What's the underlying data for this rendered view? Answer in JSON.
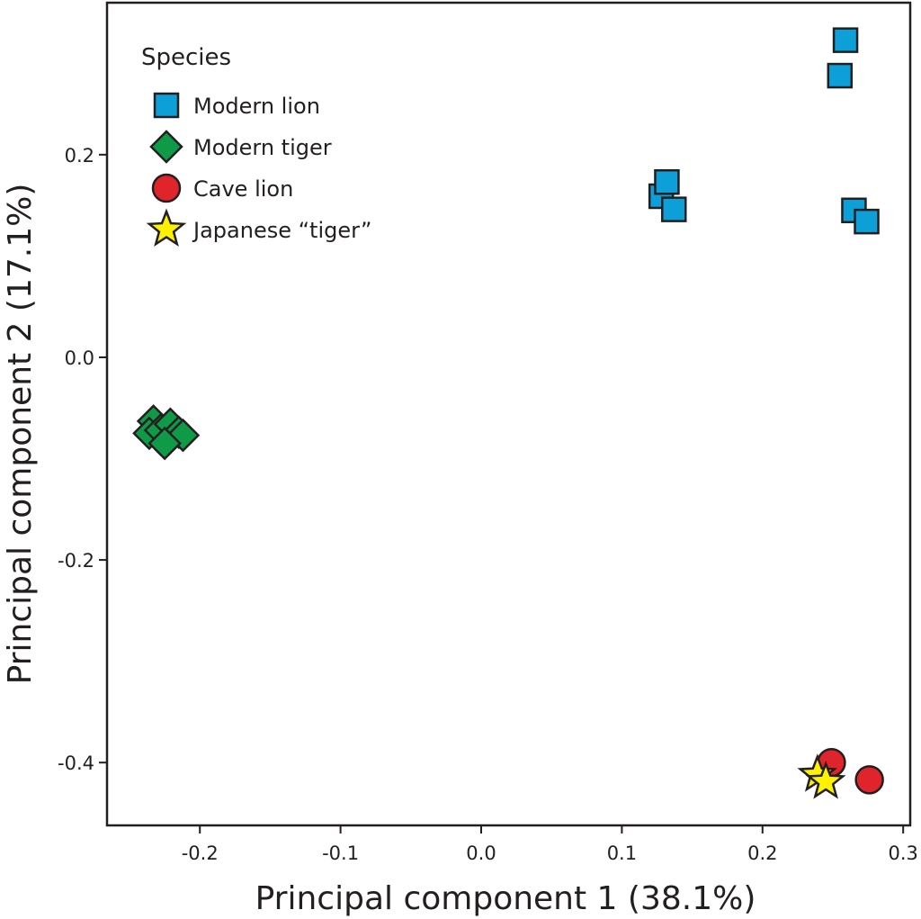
{
  "chart_data": {
    "type": "scatter",
    "title": "",
    "xlabel": "Principal component 1 (38.1%)",
    "ylabel": "Principal component 2 (17.1%)",
    "xlim": [
      -0.266,
      0.305
    ],
    "ylim": [
      -0.462,
      0.35
    ],
    "xticks": [
      -0.2,
      -0.1,
      0.0,
      0.1,
      0.2,
      0.3
    ],
    "xtick_labels": [
      "-0.2",
      "-0.1",
      "0.0",
      "0.1",
      "0.2",
      "0.3"
    ],
    "yticks": [
      0.2,
      0.0,
      -0.2,
      -0.4
    ],
    "ytick_labels": [
      "0.2",
      "0.0",
      "-0.2",
      "-0.4"
    ],
    "grid": false,
    "legend": {
      "title": "Species",
      "placement": "top-left"
    },
    "series": [
      {
        "name": "Modern lion",
        "marker": "square",
        "color": "#0da0d8",
        "points": [
          {
            "x": 0.128,
            "y": 0.159
          },
          {
            "x": 0.132,
            "y": 0.173
          },
          {
            "x": 0.137,
            "y": 0.146
          },
          {
            "x": 0.259,
            "y": 0.313
          },
          {
            "x": 0.255,
            "y": 0.278
          },
          {
            "x": 0.265,
            "y": 0.145
          },
          {
            "x": 0.274,
            "y": 0.134
          }
        ]
      },
      {
        "name": "Modern tiger",
        "marker": "diamond",
        "color": "#0f9a48",
        "points": [
          {
            "x": -0.233,
            "y": -0.063
          },
          {
            "x": -0.236,
            "y": -0.075
          },
          {
            "x": -0.228,
            "y": -0.072
          },
          {
            "x": -0.221,
            "y": -0.066
          },
          {
            "x": -0.215,
            "y": -0.074
          },
          {
            "x": -0.212,
            "y": -0.077
          },
          {
            "x": -0.225,
            "y": -0.085
          }
        ]
      },
      {
        "name": "Cave lion",
        "marker": "circle",
        "color": "#e0242b",
        "points": [
          {
            "x": 0.249,
            "y": -0.4
          },
          {
            "x": 0.276,
            "y": -0.417
          }
        ]
      },
      {
        "name": "Japanese “tiger”",
        "marker": "star",
        "color": "#fff200",
        "points": [
          {
            "x": 0.239,
            "y": -0.412
          },
          {
            "x": 0.245,
            "y": -0.419
          }
        ]
      }
    ]
  }
}
